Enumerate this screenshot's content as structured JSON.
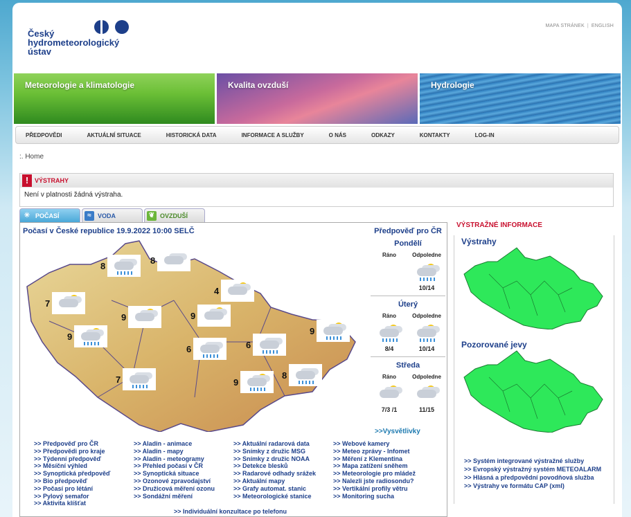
{
  "header": {
    "logo_text": "Český\nhydrometeorologický\nústav",
    "toplinks": [
      "MAPA STRÁNEK",
      "ENGLISH"
    ]
  },
  "banners": [
    "Meteorologie a klimatologie",
    "Kvalita ovzduší",
    "Hydrologie"
  ],
  "nav": [
    "PŘEDPOVĚDI",
    "AKTUÁLNÍ SITUACE",
    "HISTORICKÁ DATA",
    "INFORMACE A SLUŽBY",
    "O NÁS",
    "ODKAZY",
    "KONTAKTY",
    "LOG-IN"
  ],
  "breadcrumb": ":. Home",
  "warnings": {
    "title": "VÝSTRAHY",
    "text": "Není v platnosti žádná výstraha."
  },
  "tabs": [
    "POČASÍ",
    "VODA",
    "OVZDUŠÍ"
  ],
  "map": {
    "title": "Počasí v České republice 19.9.2022 10:00 SELČ",
    "cities": [
      {
        "temp": "8",
        "icon": "cloud-rain-icon"
      },
      {
        "temp": "8",
        "icon": "cloud-icon"
      },
      {
        "temp": "4",
        "icon": "sun-cloud-icon"
      },
      {
        "temp": "7",
        "icon": "sun-cloud-icon"
      },
      {
        "temp": "9",
        "icon": "sun-cloud-icon"
      },
      {
        "temp": "9",
        "icon": "sun-cloud-icon"
      },
      {
        "temp": "9",
        "icon": "sun-cloud-rain-icon"
      },
      {
        "temp": "9",
        "icon": "cloud-rain-icon"
      },
      {
        "temp": "6",
        "icon": "cloud-rain-icon"
      },
      {
        "temp": "6",
        "icon": "cloud-rain-icon"
      },
      {
        "temp": "7",
        "icon": "cloud-rain-icon"
      },
      {
        "temp": "9",
        "icon": "sun-cloud-icon"
      },
      {
        "temp": "8",
        "icon": "cloud-rain-icon"
      }
    ]
  },
  "forecast": {
    "title": "Předpověď pro ČR",
    "days": [
      {
        "name": "Pondělí",
        "cols": [
          {
            "label": "Ráno",
            "temp": ""
          },
          {
            "label": "Odpoledne",
            "temp": "10/14"
          }
        ]
      },
      {
        "name": "Úterý",
        "cols": [
          {
            "label": "Ráno",
            "temp": "8/4"
          },
          {
            "label": "Odpoledne",
            "temp": "10/14"
          }
        ]
      },
      {
        "name": "Středa",
        "cols": [
          {
            "label": "Ráno",
            "temp": "7/3 /1"
          },
          {
            "label": "Odpoledne",
            "temp": "11/15"
          }
        ]
      }
    ],
    "legend_link": ">>Vysvětlivky"
  },
  "links": [
    [
      ">> Předpověď pro ČR",
      ">> Předpovědi pro kraje",
      ">> Týdenní předpověď",
      ">> Měsíční výhled",
      ">> Synoptická předpověď",
      ">> Bio předpověď",
      ">> Počasí pro létání",
      ">> Pylový semafor",
      ">> Aktivita klíšťat"
    ],
    [
      ">> Aladin - animace",
      ">> Aladin - mapy",
      ">> Aladin - meteogramy",
      ">> Přehled počasí v ČR",
      ">> Synoptická situace",
      ">> Ozonové zpravodajství",
      ">> Družicová měření ozonu",
      ">> Sondážní měření"
    ],
    [
      ">> Aktuální radarová data",
      ">> Snímky z družic MSG",
      ">> Snímky z družic NOAA",
      ">> Detekce blesků",
      ">> Radarové odhady srážek",
      ">> Aktuální mapy",
      ">> Grafy automat. stanic",
      ">> Meteorologické stanice"
    ],
    [
      ">> Webové kamery",
      ">> Meteo zprávy - Infomet",
      ">> Měření z Klementina",
      ">> Mapa zatížení sněhem",
      ">> Meteorologie pro mládež",
      ">> Nalezli jste radiosondu?",
      ">> Vertikální profily větru",
      ">> Monitoring sucha"
    ]
  ],
  "consultation": ">> Individuální konzultace po telefonu",
  "right": {
    "title": "VÝSTRAŽNÉ INFORMACE",
    "warnings_label": "Výstrahy",
    "observed_label": "Pozorované jevy",
    "links": [
      ">> Systém integrované výstražné služby",
      ">> Evropský výstražný systém METEOALARM",
      ">> Hlásná a předpovědní povodňová služba",
      ">> Výstrahy ve formátu CAP (xml)"
    ]
  },
  "colors": {
    "brand": "#1d3f8a",
    "alert": "#c8102e",
    "warn_map": "#2ee85a"
  }
}
